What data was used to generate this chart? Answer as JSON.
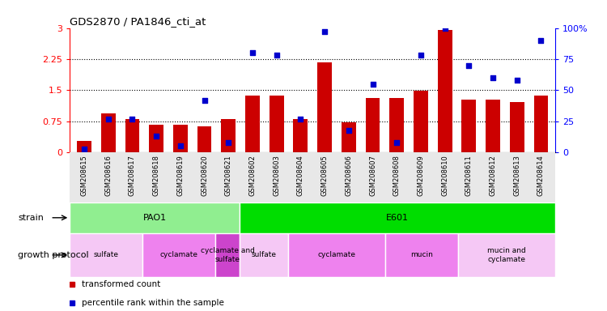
{
  "title": "GDS2870 / PA1846_cti_at",
  "samples": [
    "GSM208615",
    "GSM208616",
    "GSM208617",
    "GSM208618",
    "GSM208619",
    "GSM208620",
    "GSM208621",
    "GSM208602",
    "GSM208603",
    "GSM208604",
    "GSM208605",
    "GSM208606",
    "GSM208607",
    "GSM208608",
    "GSM208609",
    "GSM208610",
    "GSM208611",
    "GSM208612",
    "GSM208613",
    "GSM208614"
  ],
  "bar_values": [
    0.28,
    0.95,
    0.8,
    0.67,
    0.67,
    0.63,
    0.8,
    1.38,
    1.38,
    0.8,
    2.18,
    0.72,
    1.32,
    1.32,
    1.49,
    2.95,
    1.28,
    1.28,
    1.22,
    1.38
  ],
  "dot_values_pct": [
    3,
    27,
    27,
    13,
    5,
    42,
    8,
    80,
    78,
    27,
    97,
    18,
    55,
    8,
    78,
    100,
    70,
    60,
    58,
    90
  ],
  "bar_color": "#cc0000",
  "dot_color": "#0000cc",
  "ylim_left": [
    0,
    3
  ],
  "ylim_right": [
    0,
    100
  ],
  "yticks_left": [
    0,
    0.75,
    1.5,
    2.25,
    3
  ],
  "yticks_right": [
    0,
    25,
    50,
    75,
    100
  ],
  "ytick_labels_left": [
    "0",
    "0.75",
    "1.5",
    "2.25",
    "3"
  ],
  "ytick_labels_right": [
    "0",
    "25",
    "50",
    "75",
    "100%"
  ],
  "hlines": [
    0.75,
    1.5,
    2.25
  ],
  "strain_row": [
    {
      "label": "PAO1",
      "start": 0,
      "end": 7,
      "color": "#90ee90"
    },
    {
      "label": "E601",
      "start": 7,
      "end": 20,
      "color": "#00dd00"
    }
  ],
  "protocol_row": [
    {
      "label": "sulfate",
      "start": 0,
      "end": 3,
      "color": "#f5c8f5"
    },
    {
      "label": "cyclamate",
      "start": 3,
      "end": 6,
      "color": "#ee82ee"
    },
    {
      "label": "cyclamate and\nsulfate",
      "start": 6,
      "end": 7,
      "color": "#cc44cc"
    },
    {
      "label": "sulfate",
      "start": 7,
      "end": 9,
      "color": "#f5c8f5"
    },
    {
      "label": "cyclamate",
      "start": 9,
      "end": 13,
      "color": "#ee82ee"
    },
    {
      "label": "mucin",
      "start": 13,
      "end": 16,
      "color": "#ee82ee"
    },
    {
      "label": "mucin and\ncyclamate",
      "start": 16,
      "end": 20,
      "color": "#f5c8f5"
    }
  ],
  "legend_items": [
    {
      "label": "transformed count",
      "color": "#cc0000"
    },
    {
      "label": "percentile rank within the sample",
      "color": "#0000cc"
    }
  ],
  "strain_label": "strain",
  "protocol_label": "growth protocol",
  "bar_width": 0.6,
  "bg_color": "#e8e8e8"
}
